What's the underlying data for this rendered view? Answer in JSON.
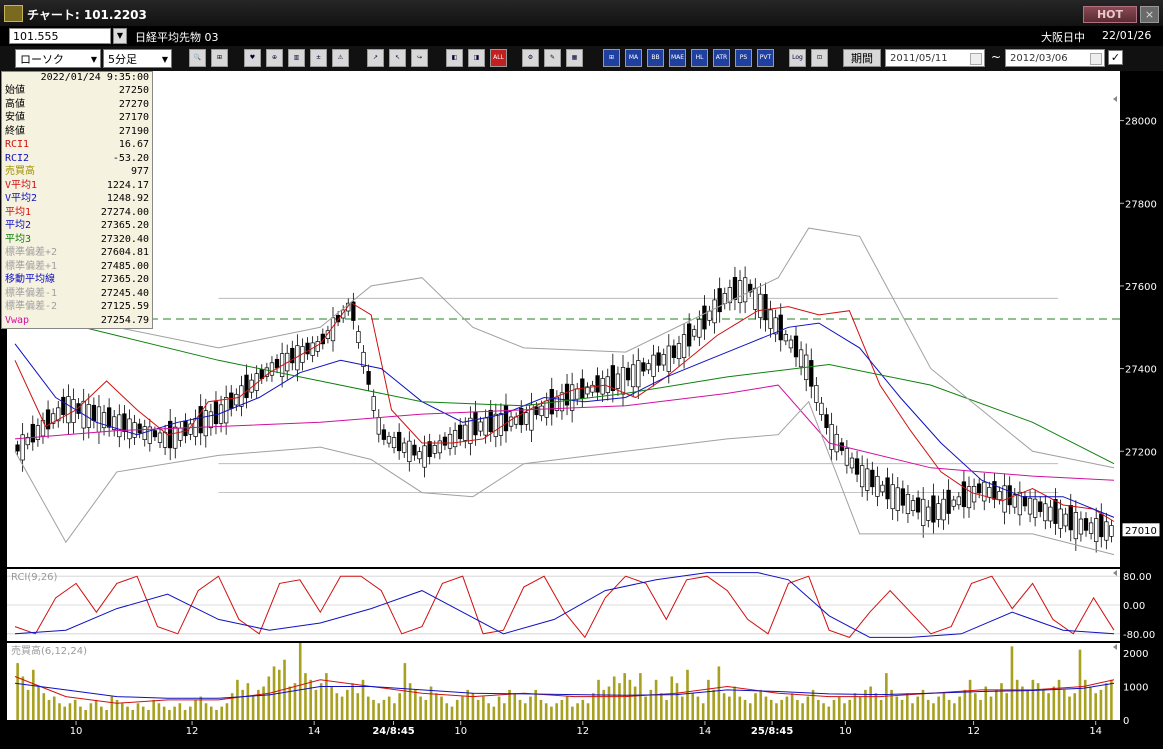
{
  "window": {
    "title": "チャート: 101.2203",
    "hot_label": "HOT",
    "close_label": "×"
  },
  "header": {
    "code": "101.555",
    "instrument": "日経平均先物 03",
    "market": "大阪日中",
    "date": "22/01/26"
  },
  "toolbar": {
    "chart_type": "ローソク",
    "interval": "5分足",
    "period_label": "期間",
    "date_from": "2011/05/11",
    "date_to": "2012/03/06",
    "tilde": "~",
    "check": "✓",
    "buttons": [
      "🔍",
      "⊞",
      "♥",
      "⊕",
      "▥",
      "±",
      "⚠",
      "↗",
      "↖",
      "↪",
      "◧",
      "◨",
      "ALL",
      "⚙",
      "✎",
      "▦",
      "⊞",
      "MA",
      "BB",
      "MAE",
      "HL",
      "ATR",
      "PS",
      "PVT",
      "Log",
      "⊡"
    ]
  },
  "info": {
    "timestamp": "2022/01/24 9:35:00",
    "rows": [
      {
        "label": "始値",
        "value": "27250",
        "color": "#000000"
      },
      {
        "label": "高値",
        "value": "27270",
        "color": "#000000"
      },
      {
        "label": "安値",
        "value": "27170",
        "color": "#000000"
      },
      {
        "label": "終値",
        "value": "27190",
        "color": "#000000"
      },
      {
        "label": "RCI1",
        "value": "16.67",
        "color": "#d01010"
      },
      {
        "label": "RCI2",
        "value": "-53.20",
        "color": "#1010c0"
      },
      {
        "label": "売買高",
        "value": "977",
        "color": "#a09000"
      },
      {
        "label": "V平均1",
        "value": "1224.17",
        "color": "#d01010"
      },
      {
        "label": "V平均2",
        "value": "1248.92",
        "color": "#1010c0"
      },
      {
        "label": "平均1",
        "value": "27274.00",
        "color": "#d01010"
      },
      {
        "label": "平均2",
        "value": "27365.20",
        "color": "#1010c0"
      },
      {
        "label": "平均3",
        "value": "27320.40",
        "color": "#108010"
      },
      {
        "label": "標準偏差+2",
        "value": "27604.81",
        "color": "#a0a0a0"
      },
      {
        "label": "標準偏差+1",
        "value": "27485.00",
        "color": "#a0a0a0"
      },
      {
        "label": "移動平均線",
        "value": "27365.20",
        "color": "#1010c0"
      },
      {
        "label": "標準偏差-1",
        "value": "27245.40",
        "color": "#a0a0a0"
      },
      {
        "label": "標準偏差-2",
        "value": "27125.59",
        "color": "#a0a0a0"
      },
      {
        "label": "Vwap",
        "value": "27254.79",
        "color": "#d010a0"
      }
    ]
  },
  "chart_data": [
    {
      "type": "line",
      "title": "",
      "yticks": [
        27200,
        27400,
        27600,
        27800,
        28000
      ],
      "ylim": [
        26920,
        28120
      ],
      "current_price": "27010",
      "reference_line": 27520,
      "xticks": [
        "10",
        "12",
        "14",
        "24/8:45",
        "10",
        "12",
        "14",
        "25/8:45",
        "10",
        "12",
        "14"
      ],
      "series": [
        {
          "name": "平均1",
          "color": "#d01010",
          "x": [
            0,
            6,
            12,
            18,
            24,
            30,
            34,
            38,
            44,
            50,
            60,
            66,
            70,
            74,
            80,
            86,
            92,
            98,
            104,
            110,
            116,
            122,
            128,
            134,
            138,
            142,
            146,
            152,
            158,
            164,
            170,
            176,
            182,
            188,
            194,
            200,
            206,
            212,
            216
          ],
          "values": [
            27420,
            27260,
            27300,
            27370,
            27300,
            27240,
            27250,
            27320,
            27330,
            27390,
            27460,
            27560,
            27530,
            27300,
            27220,
            27220,
            27230,
            27280,
            27320,
            27350,
            27360,
            27330,
            27380,
            27440,
            27480,
            27510,
            27540,
            27550,
            27530,
            27540,
            27360,
            27250,
            27150,
            27100,
            27080,
            27110,
            27070,
            27060,
            27030
          ]
        },
        {
          "name": "平均2",
          "color": "#1010c0",
          "x": [
            0,
            8,
            16,
            24,
            32,
            40,
            48,
            56,
            64,
            72,
            80,
            88,
            96,
            104,
            112,
            120,
            128,
            136,
            144,
            152,
            158,
            166,
            174,
            182,
            190,
            198,
            206,
            212,
            216
          ],
          "values": [
            27460,
            27330,
            27270,
            27240,
            27270,
            27290,
            27330,
            27390,
            27420,
            27400,
            27320,
            27270,
            27290,
            27330,
            27320,
            27330,
            27380,
            27420,
            27460,
            27500,
            27510,
            27450,
            27330,
            27220,
            27130,
            27090,
            27090,
            27060,
            27040
          ]
        },
        {
          "name": "平均3",
          "color": "#108010",
          "x": [
            0,
            20,
            40,
            60,
            80,
            100,
            120,
            140,
            160,
            180,
            200,
            216
          ],
          "values": [
            27540,
            27480,
            27420,
            27370,
            27320,
            27310,
            27340,
            27380,
            27410,
            27360,
            27270,
            27170
          ]
        },
        {
          "name": "Vwap",
          "color": "#d010a0",
          "x": [
            0,
            20,
            40,
            60,
            80,
            100,
            120,
            140,
            150,
            160,
            180,
            200,
            216
          ],
          "values": [
            27230,
            27250,
            27260,
            27270,
            27290,
            27300,
            27310,
            27340,
            27360,
            27220,
            27160,
            27140,
            27130
          ]
        },
        {
          "name": "標準偏差+2",
          "color": "#a0a0a0",
          "x": [
            0,
            20,
            40,
            60,
            70,
            80,
            90,
            100,
            120,
            140,
            150,
            156,
            166,
            180,
            200,
            216
          ],
          "values": [
            27650,
            27500,
            27450,
            27500,
            27600,
            27620,
            27500,
            27450,
            27440,
            27560,
            27620,
            27740,
            27720,
            27400,
            27200,
            27160
          ]
        },
        {
          "name": "標準偏差-2",
          "color": "#a0a0a0",
          "x": [
            0,
            10,
            20,
            40,
            60,
            70,
            80,
            90,
            100,
            120,
            140,
            150,
            156,
            166,
            180,
            200,
            216
          ],
          "values": [
            27200,
            26980,
            27150,
            27190,
            27210,
            27180,
            27100,
            27090,
            27170,
            27200,
            27230,
            27240,
            27320,
            27000,
            27000,
            27000,
            26950
          ]
        }
      ],
      "candles_close_trace": {
        "x": [
          0,
          10,
          20,
          30,
          40,
          50,
          60,
          66,
          72,
          80,
          90,
          100,
          110,
          120,
          130,
          140,
          144,
          150,
          154,
          156,
          160,
          166,
          172,
          180,
          190,
          200,
          210,
          216
        ],
        "values": [
          27200,
          27310,
          27270,
          27230,
          27290,
          27400,
          27460,
          27560,
          27240,
          27190,
          27260,
          27280,
          27340,
          27380,
          27440,
          27580,
          27600,
          27500,
          27440,
          27400,
          27250,
          27150,
          27100,
          27050,
          27110,
          27070,
          27020,
          27010
        ]
      }
    },
    {
      "type": "line",
      "title": "RCI(9,26)",
      "yticks": [
        80,
        0,
        -80
      ],
      "ytick_labels": [
        "80.00",
        "0.00",
        "-80.00"
      ],
      "ylim": [
        -100,
        100
      ],
      "series": [
        {
          "name": "RCI1",
          "color": "#d01010",
          "x": [
            0,
            4,
            8,
            12,
            16,
            20,
            24,
            28,
            32,
            36,
            40,
            44,
            48,
            52,
            56,
            60,
            64,
            68,
            72,
            76,
            80,
            84,
            88,
            92,
            96,
            100,
            104,
            108,
            112,
            116,
            120,
            124,
            128,
            132,
            136,
            140,
            144,
            148,
            152,
            156,
            160,
            164,
            168,
            172,
            176,
            180,
            184,
            188,
            192,
            196,
            200,
            204,
            208,
            212,
            216
          ],
          "values": [
            -60,
            -80,
            20,
            60,
            -20,
            60,
            80,
            -60,
            -80,
            40,
            80,
            -40,
            -80,
            60,
            70,
            -20,
            80,
            80,
            40,
            -80,
            -60,
            60,
            80,
            -80,
            -70,
            50,
            80,
            -20,
            -90,
            20,
            80,
            60,
            -40,
            70,
            80,
            40,
            -40,
            -80,
            60,
            80,
            -70,
            -90,
            -20,
            40,
            -20,
            -80,
            -60,
            60,
            80,
            -10,
            60,
            -40,
            -80,
            20,
            -70
          ]
        },
        {
          "name": "RCI2",
          "color": "#1010c0",
          "x": [
            0,
            10,
            20,
            30,
            40,
            50,
            60,
            70,
            80,
            88,
            96,
            106,
            116,
            126,
            136,
            146,
            152,
            160,
            168,
            176,
            186,
            196,
            206,
            216
          ],
          "values": [
            -80,
            -70,
            -10,
            30,
            -40,
            -70,
            -50,
            -10,
            40,
            -20,
            -80,
            -40,
            40,
            70,
            90,
            90,
            70,
            -30,
            -90,
            -90,
            -80,
            -20,
            -70,
            -80
          ]
        }
      ]
    },
    {
      "type": "bar",
      "title": "売買高(6,12,24)",
      "yticks": [
        2000,
        1000,
        0
      ],
      "ytick_labels": [
        "2000",
        "1000",
        "0"
      ],
      "ylim": [
        0,
        2300
      ],
      "values": [
        1700,
        1300,
        900,
        1500,
        1000,
        800,
        600,
        700,
        500,
        400,
        500,
        600,
        400,
        300,
        500,
        600,
        400,
        300,
        700,
        600,
        500,
        400,
        300,
        500,
        400,
        300,
        600,
        500,
        400,
        300,
        400,
        500,
        300,
        400,
        600,
        700,
        500,
        400,
        300,
        400,
        500,
        800,
        1200,
        900,
        1100,
        700,
        900,
        1000,
        1300,
        1600,
        1500,
        1800,
        1000,
        1100,
        2300,
        1400,
        1200,
        900,
        1100,
        1400,
        1000,
        800,
        700,
        900,
        1100,
        800,
        1200,
        700,
        600,
        500,
        600,
        700,
        500,
        800,
        1700,
        1100,
        900,
        700,
        600,
        1000,
        800,
        700,
        500,
        400,
        600,
        700,
        900,
        800,
        600,
        700,
        500,
        400,
        700,
        500,
        900,
        800,
        600,
        500,
        700,
        900,
        600,
        500,
        400,
        500,
        600,
        700,
        400,
        500,
        600,
        500,
        800,
        1200,
        900,
        1000,
        1300,
        1100,
        1400,
        1200,
        1000,
        1400,
        700,
        900,
        1200,
        800,
        600,
        1300,
        1100,
        700,
        1500,
        800,
        700,
        500,
        1200,
        900,
        1600,
        800,
        700,
        1000,
        700,
        600,
        500,
        800,
        900,
        700,
        600,
        500,
        600,
        700,
        800,
        600,
        500,
        700,
        900,
        600,
        500,
        400,
        600,
        700,
        500,
        600,
        800,
        700,
        900,
        1000,
        800,
        600,
        1400,
        900,
        700,
        600,
        800,
        500,
        700,
        900,
        600,
        500,
        700,
        800,
        600,
        500,
        700,
        900,
        1200,
        800,
        600,
        1000,
        700,
        900,
        1100,
        800,
        2200,
        1200,
        1000,
        900,
        1200,
        1100,
        900,
        800,
        1000,
        1200,
        900,
        700,
        800,
        2100,
        1200,
        1000,
        800,
        900,
        1100,
        1200
      ],
      "series": [
        {
          "name": "V平均1",
          "color": "#d01010",
          "x": [
            0,
            10,
            20,
            30,
            40,
            50,
            60,
            70,
            80,
            90,
            100,
            110,
            120,
            130,
            140,
            150,
            160,
            170,
            180,
            190,
            200,
            210,
            216
          ],
          "values": [
            1300,
            700,
            500,
            600,
            600,
            800,
            1200,
            1000,
            800,
            700,
            800,
            700,
            700,
            800,
            1000,
            800,
            700,
            700,
            800,
            900,
            900,
            1000,
            1200
          ]
        },
        {
          "name": "V平均2",
          "color": "#1010c0",
          "x": [
            0,
            10,
            20,
            30,
            40,
            50,
            60,
            70,
            80,
            90,
            100,
            110,
            120,
            130,
            140,
            150,
            160,
            170,
            180,
            190,
            200,
            210,
            216
          ],
          "values": [
            1100,
            900,
            700,
            650,
            650,
            750,
            1000,
            1000,
            900,
            800,
            780,
            760,
            740,
            760,
            900,
            850,
            780,
            760,
            800,
            850,
            880,
            950,
            1100
          ]
        }
      ]
    }
  ]
}
